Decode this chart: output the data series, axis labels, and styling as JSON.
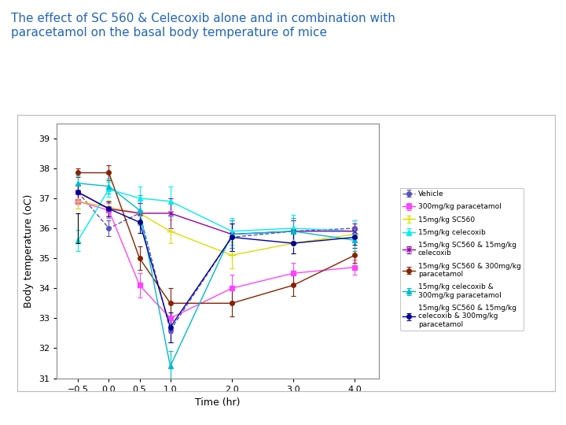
{
  "title_line1": "The effect of SC 560 & Celecoxib alone and in combination with",
  "title_line2": "paracetamol on the basal body temperature of mice",
  "xlabel": "Time (hr)",
  "ylabel": "Body temperature (oC)",
  "xlim": [
    -0.85,
    4.4
  ],
  "ylim": [
    31,
    39.5
  ],
  "yticks": [
    31,
    32,
    33,
    34,
    35,
    36,
    37,
    38,
    39
  ],
  "xticks": [
    -0.5,
    0,
    0.5,
    1,
    2,
    3,
    4
  ],
  "time": [
    -0.5,
    0,
    0.5,
    1,
    2,
    3,
    4
  ],
  "series": [
    {
      "label": "Vehicle",
      "color": "#5555bb",
      "marker": "o",
      "markersize": 4,
      "linestyle": "--",
      "linewidth": 1.0,
      "values": [
        37.2,
        36.0,
        36.5,
        32.6,
        35.7,
        35.9,
        36.0
      ],
      "errors": [
        0.25,
        0.25,
        0.35,
        0.4,
        0.45,
        0.35,
        0.25
      ]
    },
    {
      "label": "300mg/kg paracetamol",
      "color": "#ff44ff",
      "marker": "s",
      "markersize": 4,
      "linestyle": "-",
      "linewidth": 1.0,
      "values": [
        36.9,
        36.6,
        34.1,
        33.0,
        34.0,
        34.5,
        34.7
      ],
      "errors": [
        0.25,
        0.25,
        0.4,
        0.5,
        0.45,
        0.35,
        0.25
      ]
    },
    {
      "label": "15mg/kg SC560",
      "color": "#dddd00",
      "marker": "+",
      "markersize": 7,
      "linestyle": "-",
      "linewidth": 1.0,
      "values": [
        36.9,
        36.7,
        36.5,
        35.9,
        35.1,
        35.5,
        35.8
      ],
      "errors": [
        0.25,
        0.25,
        0.35,
        0.4,
        0.45,
        0.35,
        0.25
      ]
    },
    {
      "label": "15mg/kg celecoxib",
      "color": "#00eeee",
      "marker": "^",
      "markersize": 4,
      "linestyle": "-",
      "linewidth": 1.0,
      "values": [
        35.6,
        37.3,
        37.0,
        36.9,
        35.9,
        36.0,
        35.9
      ],
      "errors": [
        0.35,
        0.25,
        0.4,
        0.5,
        0.45,
        0.45,
        0.35
      ]
    },
    {
      "label": "15mg/kg SC560 & 15mg/kg\ncelecoxib",
      "color": "#9900aa",
      "marker": "x",
      "markersize": 5,
      "linestyle": "-",
      "linewidth": 1.0,
      "values": [
        37.2,
        36.65,
        36.5,
        36.5,
        35.8,
        35.9,
        35.9
      ],
      "errors": [
        0.25,
        0.25,
        0.35,
        0.5,
        0.45,
        0.35,
        0.25
      ]
    },
    {
      "label": "15mg/kg SC560 & 300mg/kg\nparacetamol",
      "color": "#882200",
      "marker": "o",
      "markersize": 4,
      "linestyle": "-",
      "linewidth": 1.0,
      "values": [
        37.85,
        37.85,
        35.0,
        33.5,
        33.5,
        34.1,
        35.1
      ],
      "errors": [
        0.15,
        0.25,
        0.4,
        0.5,
        0.45,
        0.35,
        0.25
      ]
    },
    {
      "label": "15mg/kg celecoxib &\n300mg/kg paracetamol",
      "color": "#00bbcc",
      "marker": "^",
      "markersize": 4,
      "linestyle": "-",
      "linewidth": 1.0,
      "values": [
        37.5,
        37.4,
        36.6,
        31.4,
        35.8,
        35.9,
        35.6
      ],
      "errors": [
        0.25,
        0.25,
        0.5,
        0.5,
        0.45,
        0.45,
        0.35
      ]
    },
    {
      "label": "15mg/kg SC560 & 15mg/kg\ncelecoxib & 300mg/kg\nparacetamol",
      "color": "#000099",
      "marker": "o",
      "markersize": 4,
      "linestyle": "-",
      "linewidth": 1.0,
      "values": [
        37.2,
        36.65,
        36.2,
        32.7,
        35.7,
        35.5,
        35.7
      ],
      "errors": [
        0.25,
        0.25,
        0.35,
        0.5,
        0.45,
        0.35,
        0.25
      ]
    }
  ],
  "bg_color": "#ffffff",
  "title_color": "#2266bb",
  "title_fontsize": 11,
  "axis_fontsize": 9,
  "tick_fontsize": 8,
  "legend_fontsize": 6.5,
  "standalone_error_x": -0.5,
  "standalone_error_y": 36.0,
  "standalone_error_yerr": 0.5
}
